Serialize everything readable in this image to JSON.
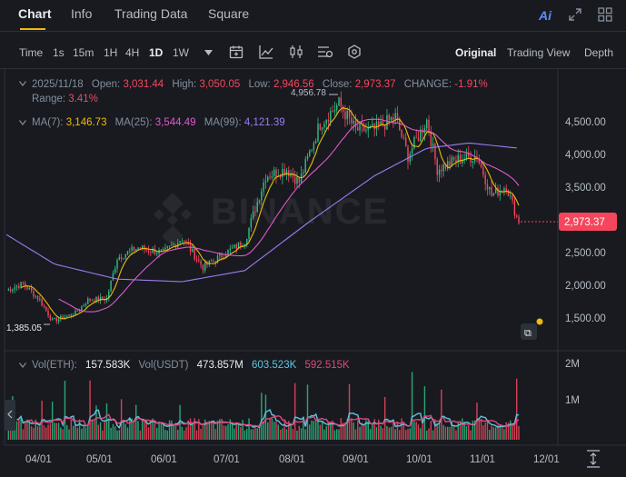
{
  "tabs": [
    "Chart",
    "Info",
    "Trading Data",
    "Square"
  ],
  "header_icons": [
    "ai-icon",
    "expand-icon",
    "grid-icon"
  ],
  "ai_label": "Ai",
  "toolbar": {
    "time_label": "Time",
    "intervals": [
      "1s",
      "15m",
      "1H",
      "4H",
      "1D",
      "1W"
    ],
    "active_interval": "1D",
    "views": [
      "Original",
      "Trading View",
      "Depth"
    ],
    "active_view": "Original"
  },
  "info": {
    "date": "2025/11/18",
    "open_label": "Open:",
    "open": "3,031.44",
    "high_label": "High:",
    "high": "3,050.05",
    "low_label": "Low:",
    "low": "2,946.56",
    "close_label": "Close:",
    "close": "2,973.37",
    "change_label": "CHANGE:",
    "change": "-1.91%",
    "range_label": "Range:",
    "range": "3.41%"
  },
  "ma": {
    "ma7_label": "MA(7):",
    "ma7": "3,146.73",
    "ma25_label": "MA(25):",
    "ma25": "3,544.49",
    "ma99_label": "MA(99):",
    "ma99": "4,121.39"
  },
  "price_axis": [
    "4,500.00",
    "4,000.00",
    "3,500.00",
    "3,000.00",
    "2,500.00",
    "2,000.00",
    "1,500.00"
  ],
  "current_price": "2,973.37",
  "high_marker": "4,956.78",
  "low_marker": "1,385.05",
  "volume": {
    "label_eth": "Vol(ETH):",
    "eth": "157.583K",
    "label_usdt": "Vol(USDT)",
    "usdt": "473.857M",
    "ma1": "603.523K",
    "ma2": "592.515K",
    "axis": [
      "2M",
      "1M"
    ]
  },
  "date_axis": [
    "04/01",
    "05/01",
    "06/01",
    "07/01",
    "08/01",
    "09/01",
    "10/01",
    "11/01",
    "12/01"
  ],
  "watermark": "BINANCE",
  "colors": {
    "up": "#2ebd85",
    "down": "#f6465d",
    "ma7": "#f0b90b",
    "ma25": "#e158c9",
    "ma99": "#9d7bf0",
    "vol_ma1": "#5ec6e0",
    "vol_ma2": "#e0487a"
  },
  "chart_data": {
    "type": "candlestick",
    "x_range": [
      "2025-03-18",
      "2025-11-18"
    ],
    "y_range": [
      1385.05,
      4956.78
    ],
    "close_path": [
      [
        "2025-03-18",
        1950
      ],
      [
        "2025-03-26",
        2050
      ],
      [
        "2025-04-03",
        1800
      ],
      [
        "2025-04-09",
        1480
      ],
      [
        "2025-04-20",
        1600
      ],
      [
        "2025-04-26",
        1800
      ],
      [
        "2025-05-05",
        1820
      ],
      [
        "2025-05-10",
        2450
      ],
      [
        "2025-05-20",
        2600
      ],
      [
        "2025-06-01",
        2520
      ],
      [
        "2025-06-10",
        2750
      ],
      [
        "2025-06-20",
        2300
      ],
      [
        "2025-06-30",
        2500
      ],
      [
        "2025-07-10",
        2700
      ],
      [
        "2025-07-20",
        3700
      ],
      [
        "2025-07-30",
        3800
      ],
      [
        "2025-08-05",
        3600
      ],
      [
        "2025-08-15",
        4500
      ],
      [
        "2025-08-24",
        4800
      ],
      [
        "2025-09-01",
        4400
      ],
      [
        "2025-09-10",
        4400
      ],
      [
        "2025-09-20",
        4600
      ],
      [
        "2025-09-26",
        4000
      ],
      [
        "2025-10-05",
        4550
      ],
      [
        "2025-10-10",
        3800
      ],
      [
        "2025-10-20",
        3950
      ],
      [
        "2025-10-29",
        4000
      ],
      [
        "2025-11-05",
        3400
      ],
      [
        "2025-11-12",
        3550
      ],
      [
        "2025-11-18",
        2973.37
      ]
    ],
    "ma99_path": [
      [
        "2025-03-18",
        2800
      ],
      [
        "2025-04-10",
        2350
      ],
      [
        "2025-05-10",
        2120
      ],
      [
        "2025-06-10",
        2080
      ],
      [
        "2025-07-10",
        2250
      ],
      [
        "2025-08-10",
        3000
      ],
      [
        "2025-09-10",
        3700
      ],
      [
        "2025-10-05",
        4120
      ],
      [
        "2025-10-25",
        4200
      ],
      [
        "2025-11-18",
        4121.39
      ]
    ]
  }
}
